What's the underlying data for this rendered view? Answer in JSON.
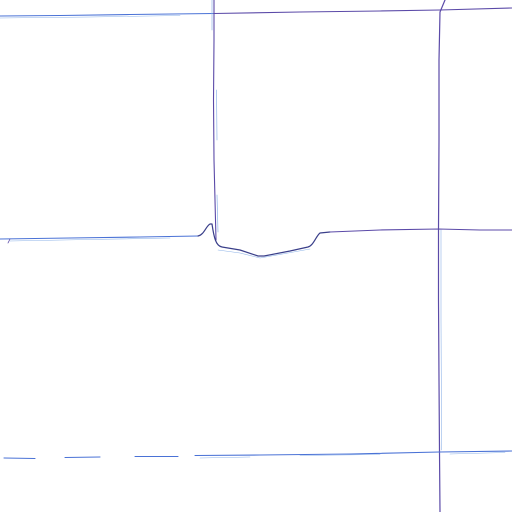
{
  "map": {
    "colors": {
      "background": "#ffffff",
      "road_blue": "#4a72d6",
      "road_purple": "#5b4aa8",
      "road_light": "#8fb4e8",
      "road_dark": "#3a3f8a"
    },
    "roads": [
      {
        "name": "top-horizontal-road-west",
        "color": "road_blue"
      },
      {
        "name": "top-horizontal-road-east",
        "color": "road_purple"
      },
      {
        "name": "left-vertical-road",
        "color": "road_purple"
      },
      {
        "name": "right-vertical-road",
        "color": "road_purple"
      },
      {
        "name": "middle-horizontal-road-west",
        "color": "road_blue"
      },
      {
        "name": "middle-curved-road",
        "color": "road_dark"
      },
      {
        "name": "middle-horizontal-road-east",
        "color": "road_purple"
      },
      {
        "name": "bottom-horizontal-road",
        "color": "road_blue"
      }
    ]
  }
}
